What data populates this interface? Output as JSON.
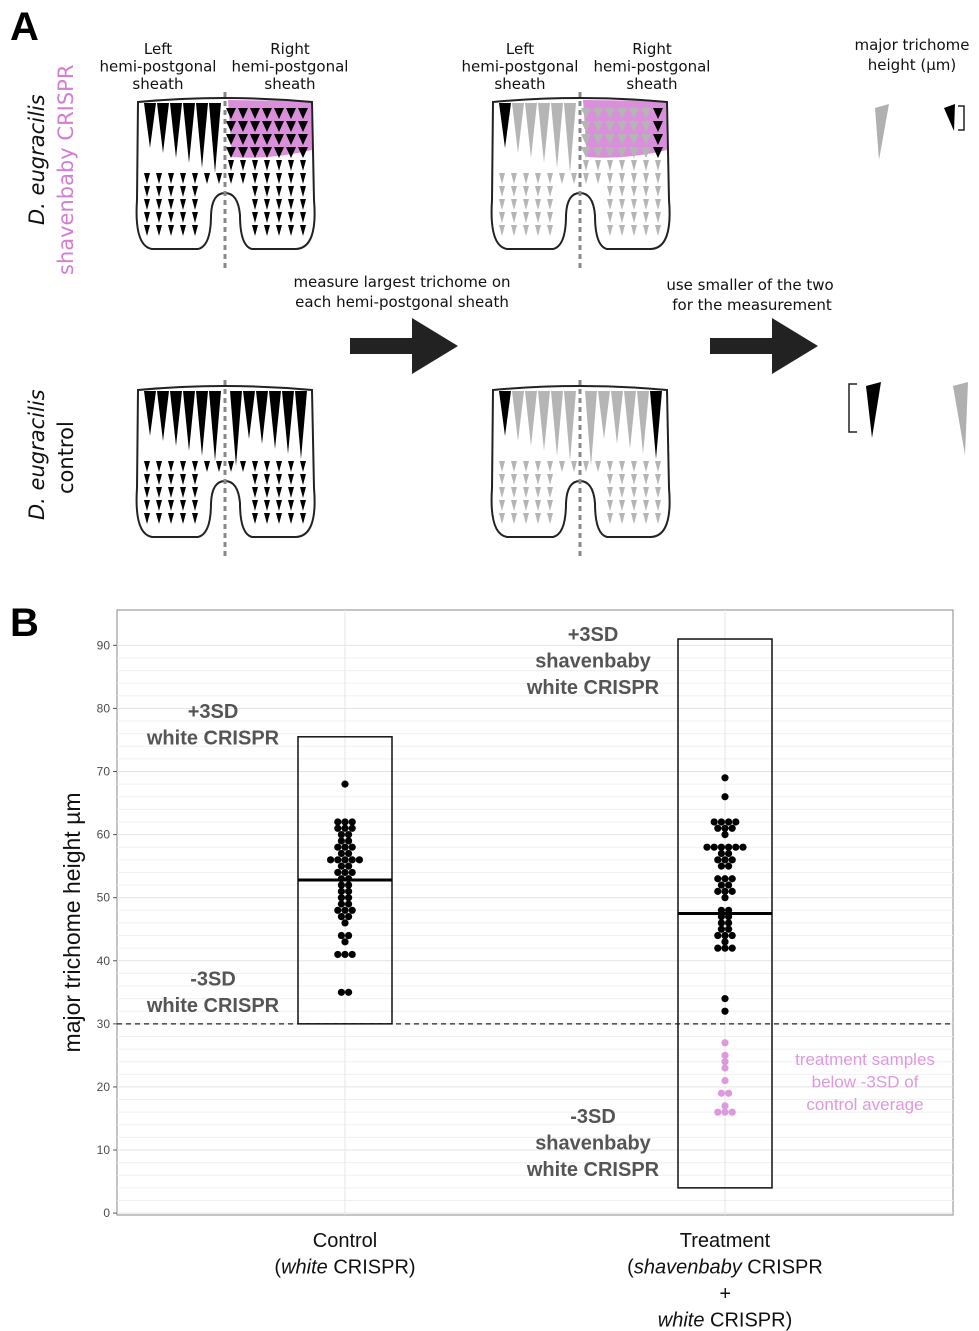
{
  "panel_a": {
    "label": "A",
    "rows": [
      {
        "species": "D. eugracilis",
        "condition": "shavenbaby CRISPR"
      },
      {
        "species": "D. eugracilis",
        "condition": "control"
      }
    ],
    "sheath_headers": [
      {
        "left": [
          "Left",
          "hemi-postgonal",
          "sheath"
        ],
        "right": [
          "Right",
          "hemi-postgonal",
          "sheath"
        ]
      },
      {
        "left": [
          "Left",
          "hemi-postgonal",
          "sheath"
        ],
        "right": [
          "Right",
          "hemi-postgonal",
          "sheath"
        ]
      }
    ],
    "step1": [
      "measure largest trichome on",
      "each hemi-postgonal sheath"
    ],
    "step2": [
      "use smaller of the two",
      "for the measurement"
    ],
    "measure_title": [
      "major trichome",
      "height (μm)"
    ]
  },
  "panel_b": {
    "label": "B"
  },
  "chart_data": {
    "type": "dotplot",
    "y_label": "major trichome height µm",
    "ylim": [
      -0.3,
      95.6
    ],
    "yticks": [
      0,
      10,
      20,
      30,
      40,
      50,
      60,
      70,
      80,
      90
    ],
    "grid": true,
    "threshold": 30,
    "point_color": "#000000",
    "below_threshold_color": "#dd99dd",
    "groups": [
      {
        "label": [
          [
            {
              "text": "Control"
            }
          ],
          [
            {
              "text": "("
            },
            {
              "text": "white",
              "italic": true
            },
            {
              "text": " CRISPR)"
            }
          ]
        ],
        "values": [
          68,
          62,
          62,
          62,
          61,
          61,
          61,
          60,
          60,
          59,
          59,
          58,
          58,
          58,
          57,
          57,
          56,
          56,
          56,
          56,
          56,
          55,
          55,
          54,
          54,
          54,
          53,
          53,
          52,
          52,
          51,
          51,
          50,
          50,
          49,
          49,
          48,
          48,
          48,
          47,
          47,
          46,
          44,
          44,
          43,
          41,
          41,
          41,
          35,
          35
        ],
        "mean": 52.8,
        "upper": 75.5,
        "lower": 30,
        "upper_label": [
          "+3SD",
          "white CRISPR"
        ],
        "lower_label": [
          "-3SD",
          "white CRISPR"
        ]
      },
      {
        "label": [
          [
            {
              "text": "Treatment"
            }
          ],
          [
            {
              "text": "("
            },
            {
              "text": "shavenbaby",
              "italic": true
            },
            {
              "text": " CRISPR"
            }
          ],
          [
            {
              "text": "+",
              "italic": true
            }
          ],
          [
            {
              "text": "white",
              "italic": true
            },
            {
              "text": " CRISPR)"
            }
          ]
        ],
        "values": [
          69,
          66,
          62,
          62,
          62,
          62,
          61,
          61,
          61,
          60,
          58,
          58,
          58,
          58,
          58,
          58,
          57,
          57,
          56,
          56,
          56,
          55,
          55,
          53,
          53,
          53,
          52,
          52,
          51,
          51,
          51,
          50,
          48,
          48,
          47,
          47,
          46,
          46,
          45,
          45,
          44,
          44,
          44,
          43,
          42,
          42,
          42,
          34,
          32,
          27,
          25,
          24,
          23,
          21,
          19,
          19,
          17,
          16,
          16,
          16
        ],
        "mean": 47.5,
        "upper": 91,
        "lower": 4,
        "upper_label": [
          "+3SD",
          "shavenbaby",
          "white CRISPR"
        ],
        "lower_label": [
          "-3SD",
          "shavenbaby",
          "white CRISPR"
        ]
      }
    ],
    "annotation": [
      "treatment samples",
      "below -3SD of",
      "control average"
    ]
  }
}
